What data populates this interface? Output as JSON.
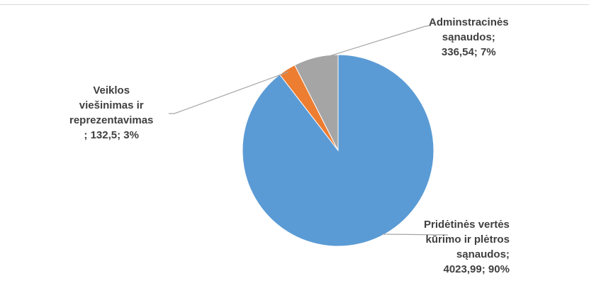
{
  "chart_data": {
    "type": "pie",
    "slices": [
      {
        "name": "Pridėtinės vertės kūrimo ir plėtros sąnaudos",
        "value": 4023.99,
        "percent": 90,
        "label": "Pridėtinės vertės\nkūrimo ir plėtros\nsąnaudos;\n4023,99; 90%",
        "color": "#5b9bd5"
      },
      {
        "name": "Veiklos viešinimas ir reprezentavimas",
        "value": 132.5,
        "percent": 3,
        "label": "Veiklos\nviešinimas ir\nreprezentavimas\n; 132,5; 3%",
        "color": "#ed7d31"
      },
      {
        "name": "Adminstracinės sąnaudos",
        "value": 336.54,
        "percent": 7,
        "label": "Adminstracinės\nsąnaudos;\n336,54; 7%",
        "color": "#a5a5a5"
      }
    ],
    "start_angle_deg": 0,
    "direction": "clockwise",
    "legend": "none",
    "leader_lines": true
  }
}
